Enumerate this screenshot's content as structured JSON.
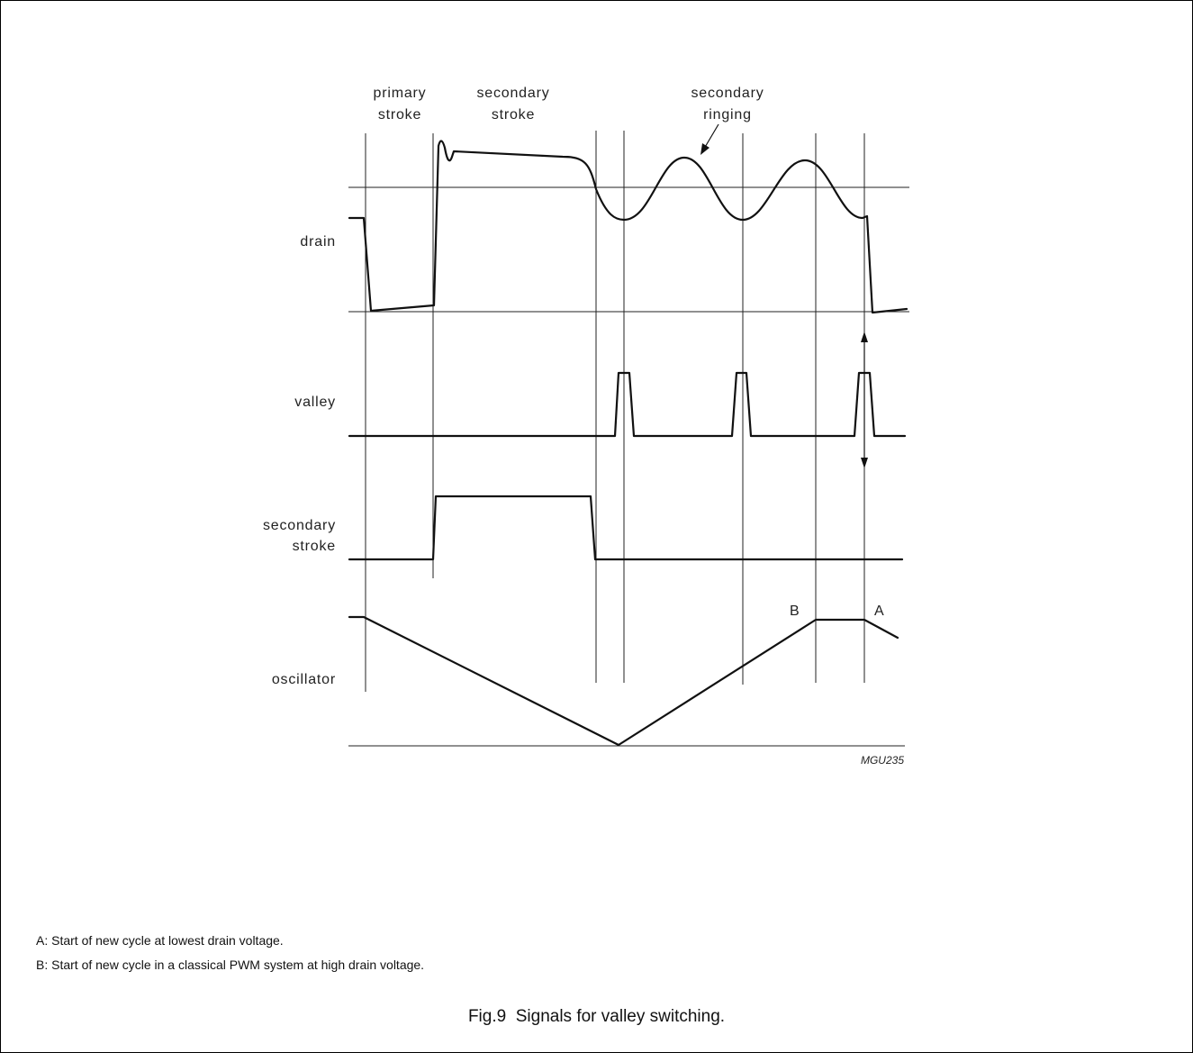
{
  "diagram": {
    "top_labels": {
      "primary_stroke": [
        "primary",
        "stroke"
      ],
      "secondary_stroke": [
        "secondary",
        "stroke"
      ],
      "secondary_ringing": [
        "secondary",
        "ringing"
      ]
    },
    "signal_labels": {
      "drain": "drain",
      "valley": "valley",
      "secondary_stroke": [
        "secondary",
        "stroke"
      ],
      "oscillator": "oscillator"
    },
    "markers": {
      "a": "A",
      "b": "B"
    },
    "figure_code": "MGU235"
  },
  "notes": {
    "a": "A: Start of new cycle at lowest drain voltage.",
    "b": "B: Start of new cycle in a classical PWM system at high drain voltage."
  },
  "caption": "Fig.9  Signals for valley switching."
}
